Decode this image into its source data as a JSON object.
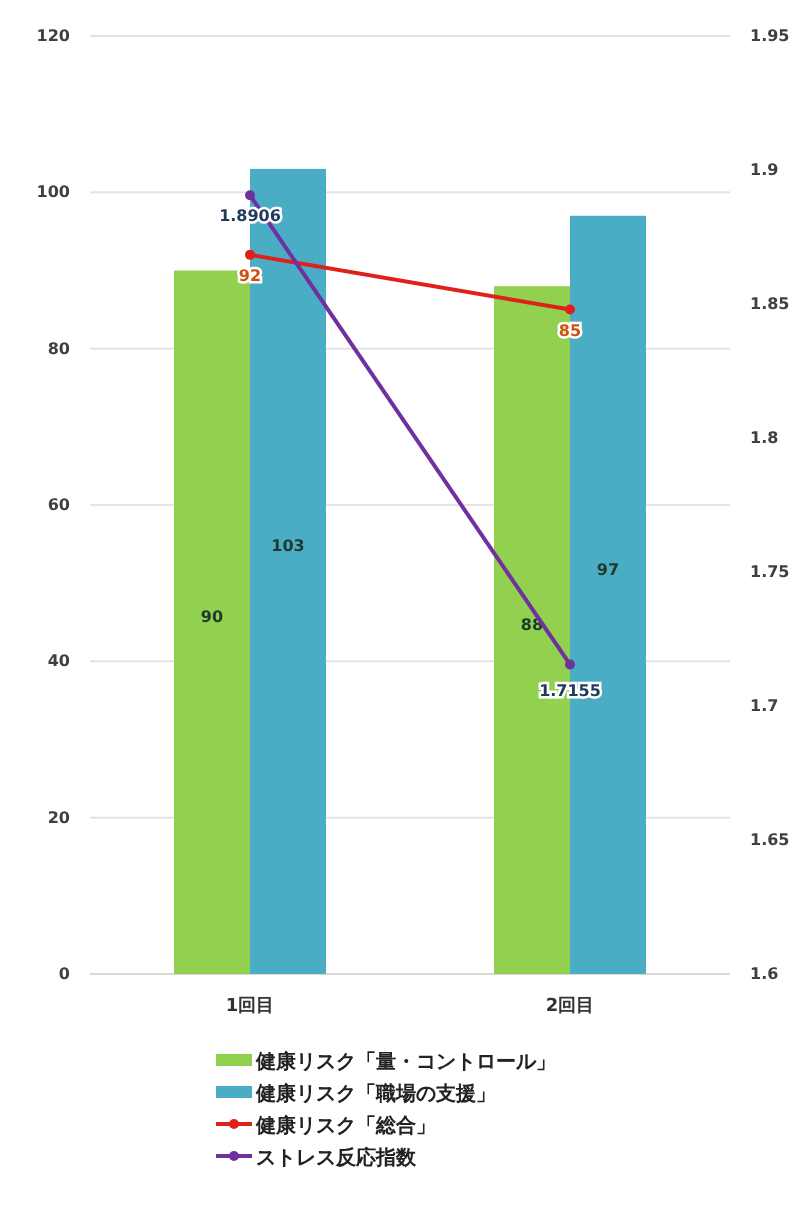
{
  "chart_data": {
    "type": "bar",
    "categories": [
      "1回目",
      "2回目"
    ],
    "series": [
      {
        "name": "健康リスク「量・コントロール」",
        "color": "#92d050",
        "values": [
          90,
          88
        ]
      },
      {
        "name": "健康リスク「職場の支援」",
        "color": "#4bacc6",
        "values": [
          103,
          97
        ]
      },
      {
        "name": "健康リスク「総合」",
        "type": "line",
        "color": "#e0201b",
        "values": [
          92,
          85
        ]
      },
      {
        "name": "ストレス反応指数",
        "type": "line",
        "axis": "y2",
        "color": "#7030a0",
        "values": [
          1.8906,
          1.7155
        ]
      }
    ],
    "ylim": [
      0,
      120
    ],
    "yticks": [
      0,
      20,
      40,
      60,
      80,
      100,
      120
    ],
    "y2lim": [
      1.6,
      1.95
    ],
    "y2ticks": [
      1.6,
      1.65,
      1.7,
      1.75,
      1.8,
      1.85,
      1.9,
      1.95
    ],
    "grid": "y",
    "legend": "bottom",
    "marker": "circle",
    "data_labels": true
  }
}
